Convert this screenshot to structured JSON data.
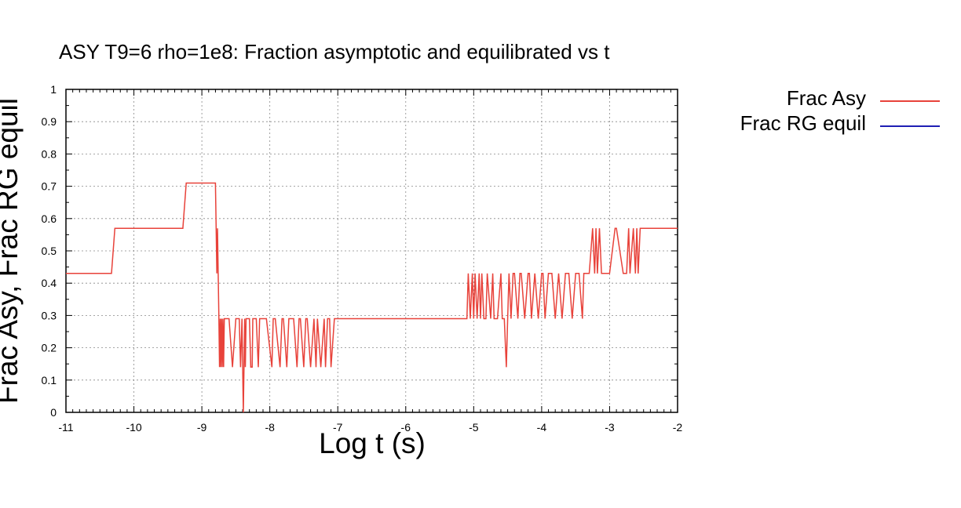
{
  "chart_data": {
    "type": "line",
    "title": "ASY T9=6 rho=1e8: Fraction asymptotic and equilibrated vs t",
    "xlabel": "Log t (s)",
    "ylabel": "Frac Asy, Frac RG equil",
    "xlim": [
      -11,
      -2
    ],
    "ylim": [
      0,
      1
    ],
    "xticks": [
      "-11",
      "-10",
      "-9",
      "-8",
      "-7",
      "-6",
      "-5",
      "-4",
      "-3",
      "-2"
    ],
    "yticks": [
      "0",
      "0.1",
      "0.2",
      "0.3",
      "0.4",
      "0.5",
      "0.6",
      "0.7",
      "0.8",
      "0.9",
      "1"
    ],
    "grid": true,
    "legend_position": "right-outside",
    "colors": {
      "frac_asy": "#e8423a",
      "frac_rg": "#1f1fb4"
    },
    "series": [
      {
        "name": "Frac Asy",
        "x": [
          -11,
          -10.33,
          -10.28,
          -9.28,
          -9.23,
          -8.8,
          -8.78,
          -8.77,
          -8.76,
          -8.75,
          -8.74,
          -8.73,
          -8.72,
          -8.71,
          -8.7,
          -8.69,
          -8.68,
          -8.67,
          -8.65,
          -8.62,
          -8.6,
          -8.55,
          -8.5,
          -8.45,
          -8.43,
          -8.41,
          -8.39,
          -8.38,
          -8.37,
          -8.36,
          -8.35,
          -8.3,
          -8.28,
          -8.26,
          -8.25,
          -8.2,
          -8.17,
          -8.15,
          -8.12,
          -8.05,
          -7.97,
          -7.95,
          -7.92,
          -7.85,
          -7.82,
          -7.8,
          -7.75,
          -7.72,
          -7.7,
          -7.65,
          -7.6,
          -7.57,
          -7.55,
          -7.5,
          -7.47,
          -7.45,
          -7.4,
          -7.35,
          -7.32,
          -7.3,
          -7.25,
          -7.2,
          -7.18,
          -7.15,
          -7.12,
          -7.1,
          -7.05,
          -7.0,
          -6.98,
          -6.95,
          -6.9,
          -6.88,
          -6.85,
          -6.8,
          -6.78,
          -6.75,
          -5.1,
          -5.08,
          -5.05,
          -5.02,
          -5.0,
          -4.98,
          -4.95,
          -4.92,
          -4.9,
          -4.88,
          -4.85,
          -4.82,
          -4.8,
          -4.75,
          -4.72,
          -4.7,
          -4.65,
          -4.6,
          -4.58,
          -4.55,
          -4.52,
          -4.5,
          -4.48,
          -4.45,
          -4.42,
          -4.4,
          -4.35,
          -4.32,
          -4.3,
          -4.25,
          -4.2,
          -4.18,
          -4.15,
          -4.1,
          -4.05,
          -4.0,
          -3.98,
          -3.95,
          -3.9,
          -3.85,
          -3.8,
          -3.75,
          -3.7,
          -3.65,
          -3.6,
          -3.55,
          -3.5,
          -3.45,
          -3.4,
          -3.38,
          -3.35,
          -3.3,
          -3.25,
          -3.22,
          -3.2,
          -3.18,
          -3.15,
          -3.12,
          -3.1,
          -3.0,
          -2.92,
          -2.9,
          -2.8,
          -2.75,
          -2.72,
          -2.7,
          -2.65,
          -2.62,
          -2.6,
          -2.58,
          -2.55,
          -2.0
        ],
        "y": [
          0.43,
          0.43,
          0.57,
          0.57,
          0.71,
          0.71,
          0.43,
          0.57,
          0.43,
          0.29,
          0.14,
          0.29,
          0.14,
          0.29,
          0.14,
          0.29,
          0.14,
          0.29,
          0.29,
          0.29,
          0.29,
          0.14,
          0.29,
          0.29,
          0.14,
          0.29,
          0.0,
          0.14,
          0.29,
          0.14,
          0.29,
          0.29,
          0.14,
          0.14,
          0.29,
          0.29,
          0.14,
          0.29,
          0.29,
          0.29,
          0.14,
          0.29,
          0.29,
          0.14,
          0.29,
          0.29,
          0.14,
          0.29,
          0.29,
          0.29,
          0.14,
          0.29,
          0.29,
          0.14,
          0.29,
          0.29,
          0.14,
          0.29,
          0.14,
          0.29,
          0.14,
          0.29,
          0.14,
          0.29,
          0.29,
          0.14,
          0.29,
          0.29,
          0.29,
          0.29,
          0.29,
          0.29,
          0.29,
          0.29,
          0.29,
          0.29,
          0.29,
          0.43,
          0.29,
          0.43,
          0.29,
          0.43,
          0.29,
          0.43,
          0.29,
          0.43,
          0.29,
          0.29,
          0.43,
          0.29,
          0.43,
          0.29,
          0.29,
          0.43,
          0.29,
          0.29,
          0.14,
          0.29,
          0.43,
          0.29,
          0.43,
          0.43,
          0.29,
          0.43,
          0.43,
          0.29,
          0.43,
          0.43,
          0.29,
          0.43,
          0.29,
          0.43,
          0.43,
          0.29,
          0.43,
          0.43,
          0.29,
          0.43,
          0.29,
          0.43,
          0.43,
          0.29,
          0.43,
          0.43,
          0.29,
          0.43,
          0.43,
          0.43,
          0.57,
          0.43,
          0.57,
          0.43,
          0.57,
          0.43,
          0.43,
          0.43,
          0.57,
          0.57,
          0.43,
          0.43,
          0.57,
          0.43,
          0.57,
          0.43,
          0.57,
          0.43,
          0.57,
          0.57
        ]
      },
      {
        "name": "Frac RG equil",
        "x": [],
        "y": []
      }
    ]
  }
}
